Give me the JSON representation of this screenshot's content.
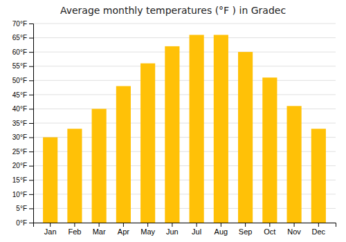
{
  "chart_data": {
    "type": "bar",
    "title": "Average monthly temperatures (°F ) in Gradec",
    "categories": [
      "Jan",
      "Feb",
      "Mar",
      "Apr",
      "May",
      "Jun",
      "Jul",
      "Aug",
      "Sep",
      "Oct",
      "Nov",
      "Dec"
    ],
    "values": [
      30,
      33,
      40,
      48,
      56,
      62,
      66,
      66,
      60,
      51,
      41,
      33
    ],
    "color": "#FFC107",
    "ylim": [
      0,
      70
    ],
    "yticks": [
      {
        "value": 0,
        "label": "0°F"
      },
      {
        "value": 5,
        "label": "5°F"
      },
      {
        "value": 10,
        "label": "10°F"
      },
      {
        "value": 15,
        "label": "15°F"
      },
      {
        "value": 20,
        "label": "20°F"
      },
      {
        "value": 25,
        "label": "25°F"
      },
      {
        "value": 30,
        "label": "30°F"
      },
      {
        "value": 35,
        "label": "35°F"
      },
      {
        "value": 40,
        "label": "40°F"
      },
      {
        "value": 45,
        "label": "45°F"
      },
      {
        "value": 50,
        "label": "50°F"
      },
      {
        "value": 55,
        "label": "55°F"
      },
      {
        "value": 60,
        "label": "60°F"
      },
      {
        "value": 65,
        "label": "65°F"
      },
      {
        "value": 70,
        "label": "70°F"
      }
    ],
    "grid": true
  }
}
